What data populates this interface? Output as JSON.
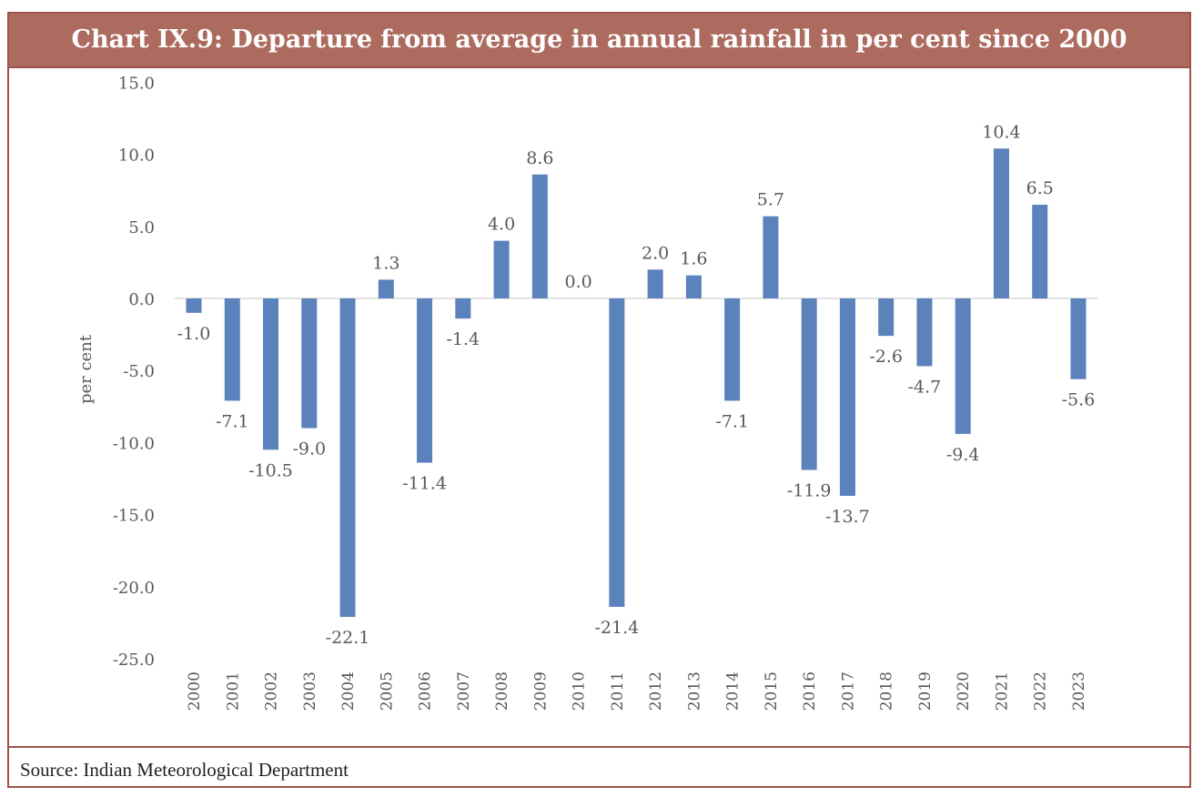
{
  "chart_data": {
    "type": "bar",
    "title": "Chart IX.9: Departure from average in annual rainfall in per cent since 2000",
    "xlabel": "",
    "ylabel": "per cent",
    "ylim": [
      -25,
      15
    ],
    "yticks": [
      "15.0",
      "10.0",
      "5.0",
      "0.0",
      "-5.0",
      "-10.0",
      "-15.0",
      "-20.0",
      "-25.0"
    ],
    "categories": [
      "2000",
      "2001",
      "2002",
      "2003",
      "2004",
      "2005",
      "2006",
      "2007",
      "2008",
      "2009",
      "2010",
      "2011",
      "2012",
      "2013",
      "2014",
      "2015",
      "2016",
      "2017",
      "2018",
      "2019",
      "2020",
      "2021",
      "2022",
      "2023"
    ],
    "values": [
      -1.0,
      -7.1,
      -10.5,
      -9.0,
      -22.1,
      1.3,
      -11.4,
      -1.4,
      4.0,
      8.6,
      0.0,
      -21.4,
      2.0,
      1.6,
      -7.1,
      5.7,
      -11.9,
      -13.7,
      -2.6,
      -4.7,
      -9.4,
      10.4,
      6.5,
      -5.6
    ],
    "grid": false,
    "legend": "none",
    "bar_color": "#5b82bb",
    "source": "Source: Indian Meteorological Department"
  }
}
